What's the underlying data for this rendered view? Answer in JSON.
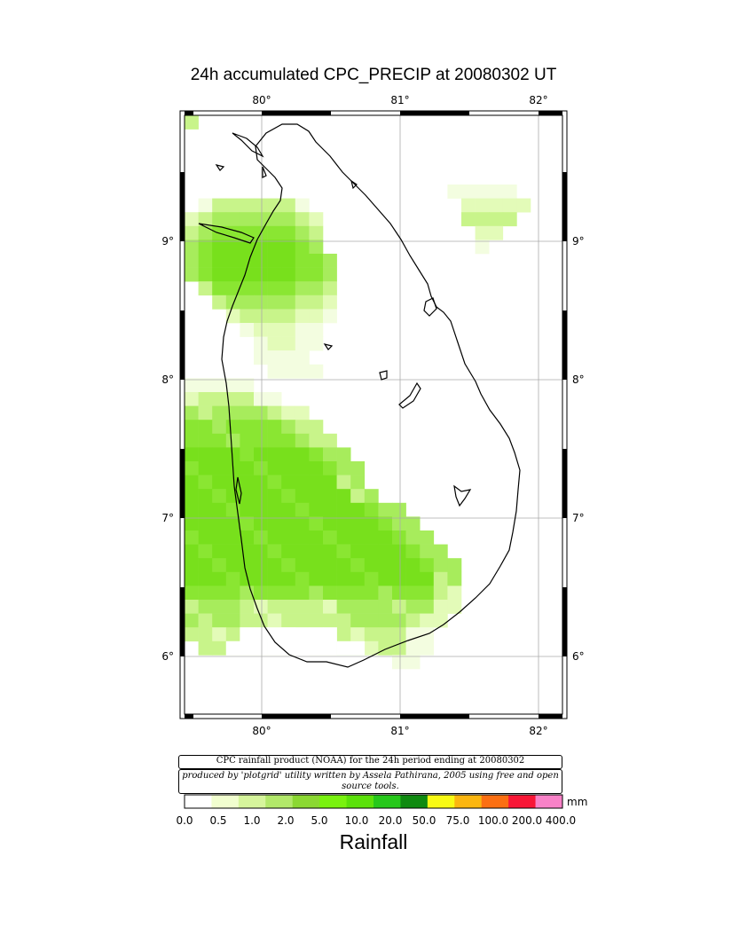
{
  "title": "24h accumulated CPC_PRECIP  at 20080302 UT",
  "map": {
    "lon_ticks": [
      "80°",
      "81°",
      "82°"
    ],
    "lat_ticks": [
      "9°",
      "8°",
      "7°",
      "6°"
    ]
  },
  "credit": "CPC rainfall product (NOAA) for the 24h period ending at 20080302",
  "produced_by": "produced by 'plotgrid' utility written by Assela Pathirana, 2005 using free and open source tools.",
  "legend": {
    "unit": "mm",
    "title": "Rainfall",
    "labels": [
      "0.0",
      "0.5",
      "1.0",
      "2.0",
      "5.0",
      "10.0",
      "20.0",
      "50.0",
      "75.0",
      "100.0",
      "200.0",
      "400.0"
    ],
    "colors": [
      "#ffffff",
      "#f1fecf",
      "#d6f59c",
      "#b2e86a",
      "#8bd832",
      "#79f20f",
      "#5be10a",
      "#26c81a",
      "#0f8a10",
      "#f8fa14",
      "#fbb610",
      "#fb6f12",
      "#f81636",
      "#f882c8"
    ]
  }
}
